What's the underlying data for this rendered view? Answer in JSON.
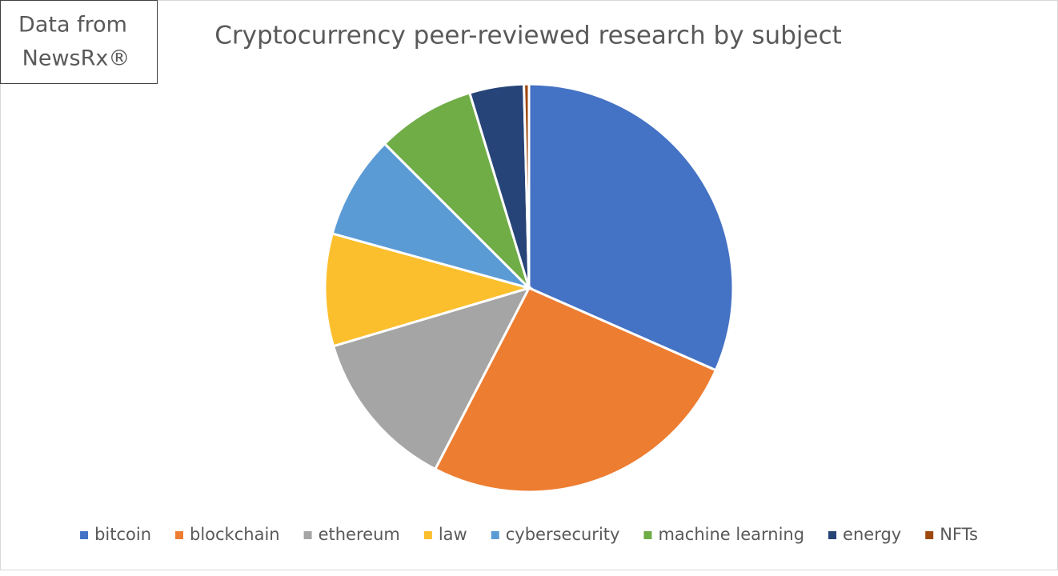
{
  "chart_data": {
    "type": "pie",
    "title": "Cryptocurrency peer-reviewed research by subject",
    "annotation": [
      "Data from",
      "NewsRx®"
    ],
    "categories": [
      "bitcoin",
      "blockchain",
      "ethereum",
      "law",
      "cybersecurity",
      "machine learning",
      "energy",
      "NFTs"
    ],
    "values": [
      31.6,
      26,
      12.8,
      8.9,
      8.2,
      7.8,
      4.3,
      0.4
    ],
    "colors": [
      "#4472c4",
      "#ed7d31",
      "#a5a5a5",
      "#fbbf2d",
      "#5b9bd5",
      "#70ad47",
      "#264478",
      "#9e480e"
    ],
    "legend": "bottom"
  }
}
